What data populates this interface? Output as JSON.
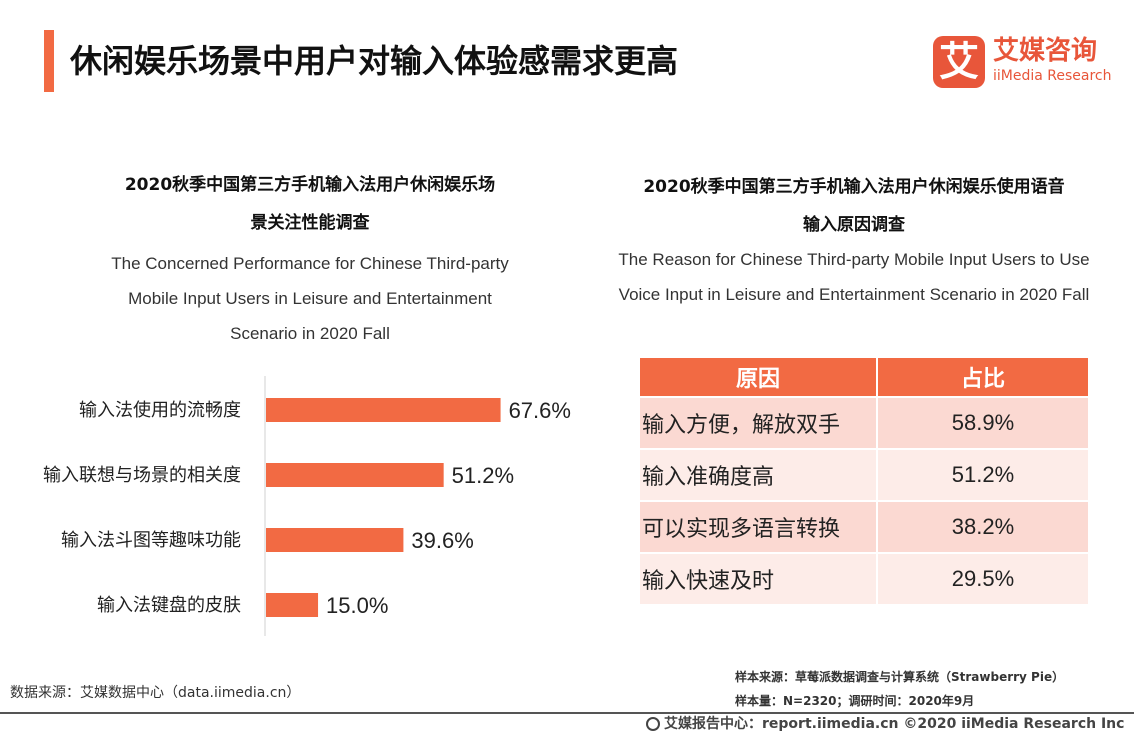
{
  "header": {
    "title": "休闲娱乐场景中用户对输入体验感需求更高"
  },
  "logo": {
    "mark": "艾",
    "cn": "艾媒咨询",
    "en": "iiMedia Research"
  },
  "left_chart": {
    "title_line1": "2020秋季中国第三方手机输入法用户休闲娱乐场",
    "title_line2": "景关注性能调查",
    "subtitle_line1": "The Concerned Performance for Chinese Third-party",
    "subtitle_line2": "Mobile Input  Users in Leisure and Entertainment",
    "subtitle_line3": "Scenario in 2020 Fall"
  },
  "right_chart": {
    "title_line1": "2020秋季中国第三方手机输入法用户休闲娱乐使用语音",
    "title_line2": "输入原因调查",
    "subtitle_line1": "The Reason for Chinese Third-party Mobile Input  Users to Use",
    "subtitle_line2": "Voice Input in Leisure and Entertainment Scenario in 2020 Fall"
  },
  "chart_data": [
    {
      "type": "bar",
      "orientation": "horizontal",
      "categories": [
        "输入法使用的流畅度",
        "输入联想与场景的相关度",
        "输入法斗图等趣味功能",
        "输入法键盘的皮肤"
      ],
      "values": [
        67.6,
        51.2,
        39.6,
        15.0
      ],
      "value_labels": [
        "67.6%",
        "51.2%",
        "39.6%",
        "15.0%"
      ],
      "unit": "%",
      "color": "#f26a43",
      "xlim": [
        0,
        100
      ],
      "grid": false
    },
    {
      "type": "table",
      "headers": [
        "原因",
        "占比"
      ],
      "rows": [
        [
          "输入方便，解放双手",
          "58.9%"
        ],
        [
          "输入准确度高",
          "51.2%"
        ],
        [
          "可以实现多语言转换",
          "38.2%"
        ],
        [
          "输入快速及时",
          "29.5%"
        ]
      ],
      "header_color": "#f26a43",
      "row_colors": [
        "#fbd9d2",
        "#fdece8"
      ]
    }
  ],
  "footer": {
    "source": "数据来源：艾媒数据中心（data.iimedia.cn）",
    "sample_source": "样本来源：草莓派数据调查与计算系统（Strawberry Pie）",
    "sample_size": "样本量：N=2320；调研时间：2020年9月",
    "report_center": "艾媒报告中心：report.iimedia.cn  ©2020  iiMedia Research  Inc"
  }
}
